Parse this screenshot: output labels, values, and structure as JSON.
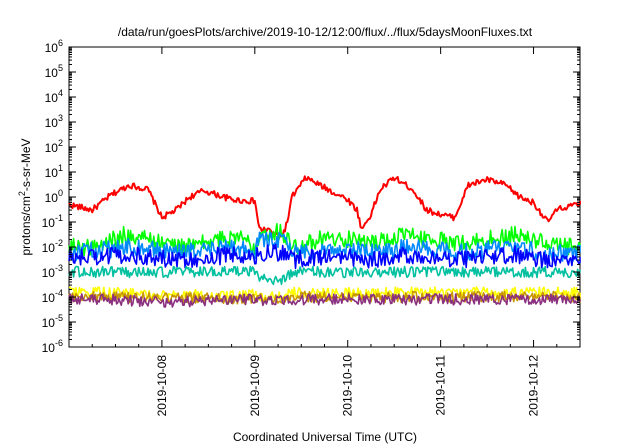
{
  "chart_data": {
    "type": "line",
    "title": "/data/run/goesPlots/archive/2019-10-12/12:00/flux/../flux/5daysMoonFluxes.txt",
    "xlabel": "Coordinated Universal Time (UTC)",
    "ylabel": {
      "prefix": "protons/cm",
      "superscript": "2",
      "suffix": "-s-sr-MeV"
    },
    "yscale": "log",
    "ylim_exponents": [
      -6,
      6
    ],
    "y_tick_exponents": [
      -6,
      -5,
      -4,
      -3,
      -2,
      -1,
      0,
      1,
      2,
      3,
      4,
      5,
      6
    ],
    "y_tick_base": "10",
    "xlim": [
      "2019-10-07 00:00",
      "2019-10-12 12:00"
    ],
    "x_ticks": [
      "2019-10-08",
      "2019-10-09",
      "2019-10-10",
      "2019-10-11",
      "2019-10-12"
    ],
    "grid": false,
    "legend": "none",
    "series": [
      {
        "color": "#ff0000",
        "x_days": [
          0,
          0.25,
          0.45,
          0.65,
          0.85,
          1.0,
          1.15,
          1.3,
          1.45,
          1.6,
          1.75,
          1.9,
          2.0,
          2.05,
          2.1,
          2.15,
          2.2,
          2.3,
          2.35,
          2.4,
          2.55,
          2.7,
          2.85,
          3.0,
          3.1,
          3.15,
          3.25,
          3.35,
          3.5,
          3.7,
          3.85,
          4.0,
          4.15,
          4.3,
          4.5,
          4.7,
          4.85,
          5.0,
          5.15,
          5.25,
          5.35,
          5.5
        ],
        "values": [
          0.5,
          0.3,
          1.2,
          3.0,
          2.0,
          0.15,
          0.3,
          1.0,
          1.8,
          1.2,
          0.8,
          0.7,
          0.7,
          0.05,
          0.05,
          0.05,
          0.03,
          0.03,
          0.1,
          1.0,
          6.0,
          3.0,
          1.5,
          0.8,
          0.3,
          0.05,
          0.2,
          2.0,
          6.0,
          2.0,
          0.3,
          0.2,
          0.15,
          3.0,
          5.0,
          3.0,
          1.0,
          0.6,
          0.1,
          0.3,
          0.4,
          0.5
        ]
      },
      {
        "color": "#00ff00",
        "x_days": [
          0,
          0.3,
          0.6,
          0.9,
          1.2,
          1.5,
          1.8,
          2.0,
          2.05,
          2.3,
          2.4,
          2.7,
          3.0,
          3.3,
          3.6,
          3.9,
          4.2,
          4.5,
          4.8,
          5.1,
          5.3,
          5.5
        ],
        "values": [
          0.01,
          0.01,
          0.03,
          0.02,
          0.01,
          0.015,
          0.03,
          0.01,
          0.04,
          0.04,
          0.01,
          0.02,
          0.02,
          0.015,
          0.03,
          0.02,
          0.015,
          0.02,
          0.03,
          0.015,
          0.01,
          0.01
        ]
      },
      {
        "color": "#0088ff",
        "x_days": [
          0,
          0.3,
          0.6,
          0.9,
          1.2,
          1.5,
          1.8,
          2.0,
          2.05,
          2.3,
          2.4,
          2.7,
          3.0,
          3.3,
          3.6,
          3.9,
          4.2,
          4.5,
          4.8,
          5.1,
          5.3,
          5.5
        ],
        "values": [
          0.006,
          0.007,
          0.01,
          0.008,
          0.006,
          0.008,
          0.01,
          0.006,
          0.02,
          0.02,
          0.006,
          0.008,
          0.008,
          0.006,
          0.01,
          0.008,
          0.006,
          0.008,
          0.01,
          0.006,
          0.006,
          0.006
        ]
      },
      {
        "color": "#0000ff",
        "x_days": [
          0,
          0.3,
          0.6,
          0.9,
          1.2,
          1.5,
          1.8,
          2.0,
          2.05,
          2.3,
          2.4,
          2.7,
          3.0,
          3.3,
          3.6,
          3.9,
          4.2,
          4.5,
          4.8,
          5.1,
          5.3,
          5.5
        ],
        "values": [
          0.004,
          0.004,
          0.005,
          0.004,
          0.003,
          0.004,
          0.005,
          0.003,
          0.006,
          0.006,
          0.003,
          0.004,
          0.004,
          0.003,
          0.005,
          0.004,
          0.003,
          0.004,
          0.005,
          0.003,
          0.004,
          0.004
        ]
      },
      {
        "color": "#00c0a0",
        "x_days": [
          0,
          0.5,
          1.0,
          1.5,
          2.0,
          2.05,
          2.3,
          2.4,
          3.0,
          3.5,
          4.0,
          4.5,
          5.0,
          5.5
        ],
        "values": [
          0.001,
          0.001,
          0.001,
          0.001,
          0.001,
          0.0005,
          0.0005,
          0.001,
          0.001,
          0.001,
          0.001,
          0.001,
          0.001,
          0.001
        ]
      },
      {
        "color": "#ffff00",
        "x_days": [
          0,
          0.5,
          1.0,
          1.5,
          2.0,
          2.05,
          2.3,
          2.4,
          3.0,
          3.5,
          4.0,
          4.5,
          5.0,
          5.5
        ],
        "values": [
          0.00015,
          0.00015,
          0.00012,
          0.00012,
          0.00012,
          0.0001,
          0.0001,
          0.00015,
          0.00015,
          0.00015,
          0.00015,
          0.00015,
          0.00015,
          0.00015
        ]
      },
      {
        "color": "#c89600",
        "x_days": [
          0,
          0.5,
          1.0,
          1.5,
          2.0,
          2.4,
          3.0,
          3.5,
          4.0,
          4.5,
          5.0,
          5.5
        ],
        "values": [
          0.0001,
          0.0001,
          9e-05,
          9e-05,
          8e-05,
          0.0001,
          0.0001,
          0.0001,
          0.0001,
          0.0001,
          0.0001,
          0.0001
        ]
      },
      {
        "color": "#8b2f7f",
        "x_days": [
          0,
          0.5,
          1.0,
          1.5,
          2.0,
          2.05,
          2.3,
          2.4,
          3.0,
          3.5,
          4.0,
          4.5,
          5.0,
          5.5
        ],
        "values": [
          8e-05,
          8e-05,
          6e-05,
          7e-05,
          8e-05,
          7e-05,
          7e-05,
          8e-05,
          8e-05,
          8e-05,
          8e-05,
          8e-05,
          8e-05,
          8e-05
        ]
      }
    ]
  }
}
